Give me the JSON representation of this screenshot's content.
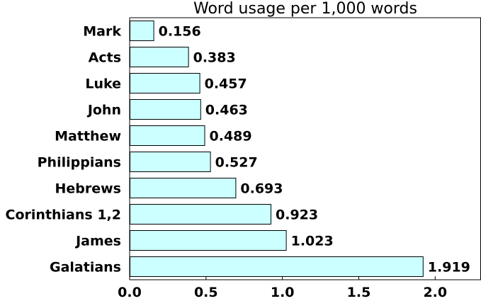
{
  "chart_data": {
    "type": "bar",
    "orientation": "horizontal",
    "title": "Word usage per 1,000 words",
    "categories": [
      "Mark",
      "Acts",
      "Luke",
      "John",
      "Matthew",
      "Philippians",
      "Hebrews",
      "Corinthians 1,2",
      "James",
      "Galatians"
    ],
    "values": [
      0.156,
      0.383,
      0.457,
      0.463,
      0.489,
      0.527,
      0.693,
      0.923,
      1.023,
      1.919
    ],
    "value_labels": [
      "0.156",
      "0.383",
      "0.457",
      "0.463",
      "0.489",
      "0.527",
      "0.693",
      "0.923",
      "1.023",
      "1.919"
    ],
    "xlim": [
      0,
      2.3
    ],
    "xticks": [
      0,
      0.5,
      1,
      1.5,
      2
    ],
    "xtick_labels": [
      "0.0",
      "0.5",
      "1.0",
      "1.5",
      "2.0"
    ],
    "xlabel": "",
    "ylabel": "",
    "grid": false,
    "legend": "none",
    "colors": {
      "bar_fill": "#ccffff",
      "bar_stroke": "#000000",
      "axis": "#000000"
    }
  }
}
